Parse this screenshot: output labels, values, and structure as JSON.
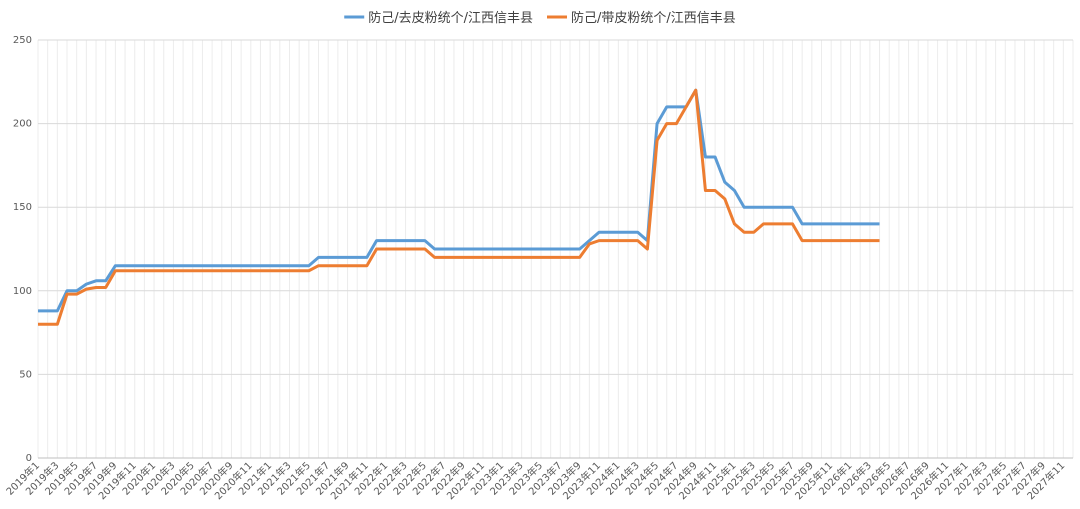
{
  "chart_data": {
    "type": "line",
    "categories": [
      "2019年1",
      null,
      "2019年3",
      null,
      "2019年5",
      null,
      "2019年7",
      null,
      "2019年9",
      null,
      "2019年11",
      null,
      "2020年1",
      null,
      "2020年3",
      null,
      "2020年5",
      null,
      "2020年7",
      null,
      "2020年9",
      null,
      "2020年11",
      null,
      "2021年1",
      null,
      "2021年3",
      null,
      "2021年5",
      null,
      "2021年7",
      null,
      "2021年9",
      null,
      "2021年11",
      null,
      "2022年1",
      null,
      "2022年3",
      null,
      "2022年5",
      null,
      "2022年7",
      null,
      "2022年9",
      null,
      "2022年11",
      null,
      "2023年1",
      null,
      "2023年3",
      null,
      "2023年5",
      null,
      "2023年7",
      null,
      "2023年9",
      null,
      "2023年11",
      null,
      "2024年1",
      null,
      "2024年3",
      null,
      "2024年5",
      null,
      "2024年7",
      null,
      "2024年9",
      null,
      "2024年11",
      null,
      "2025年1",
      null,
      "2025年3",
      null,
      "2025年5",
      null,
      "2025年7",
      null,
      "2025年9",
      null,
      "2025年11",
      null,
      "2026年1",
      null,
      "2026年3",
      null,
      "2026年5",
      null,
      "2026年7",
      null,
      "2026年9",
      null,
      "2026年11",
      null,
      "2027年1",
      null,
      "2027年3",
      null,
      "2027年5",
      null,
      "2027年7",
      null,
      "2027年9",
      null,
      "2027年11",
      null
    ],
    "series": [
      {
        "name": "防己/去皮粉统个/江西信丰县",
        "color": "#5b9bd5",
        "values": [
          88,
          88,
          88,
          100,
          100,
          104,
          106,
          106,
          115,
          115,
          115,
          115,
          115,
          115,
          115,
          115,
          115,
          115,
          115,
          115,
          115,
          115,
          115,
          115,
          115,
          115,
          115,
          115,
          115,
          120,
          120,
          120,
          120,
          120,
          120,
          130,
          130,
          130,
          130,
          130,
          130,
          125,
          125,
          125,
          125,
          125,
          125,
          125,
          125,
          125,
          125,
          125,
          125,
          125,
          125,
          125,
          125,
          130,
          135,
          135,
          135,
          135,
          135,
          130,
          200,
          210,
          210,
          210,
          220,
          180,
          180,
          165,
          160,
          150,
          150,
          150,
          150,
          150,
          150,
          140,
          140,
          140,
          140,
          140,
          140,
          140,
          140,
          140,
          null,
          null,
          null,
          null,
          null,
          null,
          null,
          null,
          null,
          null,
          null,
          null,
          null,
          null,
          null,
          null,
          null,
          null,
          null,
          null
        ]
      },
      {
        "name": "防己/带皮粉统个/江西信丰县",
        "color": "#ed7d31",
        "values": [
          80,
          80,
          80,
          98,
          98,
          101,
          102,
          102,
          112,
          112,
          112,
          112,
          112,
          112,
          112,
          112,
          112,
          112,
          112,
          112,
          112,
          112,
          112,
          112,
          112,
          112,
          112,
          112,
          112,
          115,
          115,
          115,
          115,
          115,
          115,
          125,
          125,
          125,
          125,
          125,
          125,
          120,
          120,
          120,
          120,
          120,
          120,
          120,
          120,
          120,
          120,
          120,
          120,
          120,
          120,
          120,
          120,
          128,
          130,
          130,
          130,
          130,
          130,
          125,
          190,
          200,
          200,
          210,
          220,
          160,
          160,
          155,
          140,
          135,
          135,
          140,
          140,
          140,
          140,
          130,
          130,
          130,
          130,
          130,
          130,
          130,
          130,
          130,
          null,
          null,
          null,
          null,
          null,
          null,
          null,
          null,
          null,
          null,
          null,
          null,
          null,
          null,
          null,
          null,
          null,
          null,
          null,
          null
        ]
      }
    ],
    "ylim": [
      0,
      250
    ],
    "yticks": [
      0,
      50,
      100,
      150,
      200,
      250
    ],
    "grid": true,
    "legend": "top"
  }
}
